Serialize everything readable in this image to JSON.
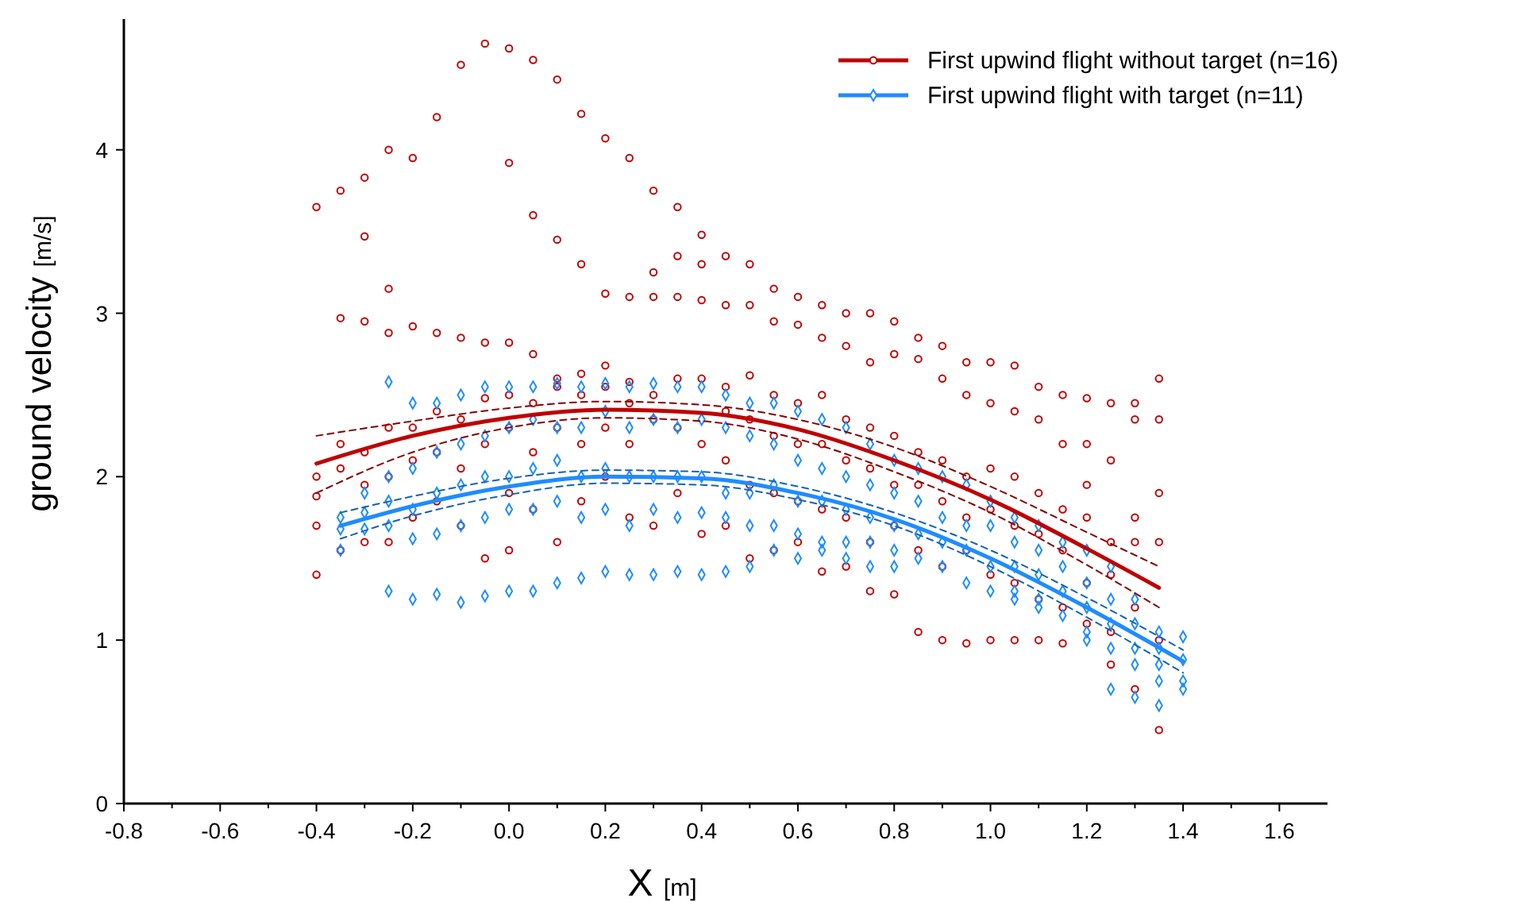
{
  "chart_data": {
    "type": "scatter",
    "xlabel": "X [m]",
    "ylabel": "ground velocity [m/s]",
    "xlim": [
      -0.8,
      1.7
    ],
    "ylim": [
      0,
      4.8
    ],
    "xticks": [
      -0.8,
      {
        "value": -0.7,
        "label": null
      },
      -0.6,
      {
        "value": -0.5,
        "label": null
      },
      -0.4,
      {
        "value": -0.3,
        "label": null
      },
      -0.2,
      {
        "value": -0.1,
        "label": null
      },
      {
        "value": 0,
        "label": "0.0"
      },
      {
        "value": 0.1,
        "label": null
      },
      0.2,
      {
        "value": 0.3,
        "label": null
      },
      0.4,
      {
        "value": 0.5,
        "label": null
      },
      0.6,
      {
        "value": 0.7,
        "label": null
      },
      0.8,
      {
        "value": 0.9,
        "label": null
      },
      {
        "value": 1,
        "label": "1.0"
      },
      {
        "value": 1.1,
        "label": null
      },
      1.2,
      {
        "value": 1.3,
        "label": null
      },
      1.4,
      {
        "value": 1.5,
        "label": null
      },
      1.6
    ],
    "yticks": [
      0,
      1,
      2,
      3,
      4
    ],
    "grid": false,
    "legend": "top right",
    "series": [
      {
        "color": "#c00000",
        "marker": "circle",
        "x": [
          -0.4,
          -0.4,
          -0.4,
          -0.4,
          -0.4,
          -0.35,
          -0.35,
          -0.35,
          -0.35,
          -0.35,
          -0.3,
          -0.3,
          -0.3,
          -0.3,
          -0.3,
          -0.3,
          -0.25,
          -0.25,
          -0.25,
          -0.25,
          -0.25,
          -0.25,
          -0.2,
          -0.2,
          -0.2,
          -0.2,
          -0.2,
          -0.15,
          -0.15,
          -0.15,
          -0.15,
          -0.15,
          -0.1,
          -0.1,
          -0.1,
          -0.1,
          -0.1,
          -0.05,
          -0.05,
          -0.05,
          -0.05,
          -0.05,
          0,
          0,
          0,
          0,
          0,
          0,
          0,
          0.05,
          0.05,
          0.05,
          0.05,
          0.05,
          0.05,
          0.1,
          0.1,
          0.1,
          0.1,
          0.1,
          0.1,
          0.15,
          0.15,
          0.15,
          0.15,
          0.15,
          0.15,
          0.2,
          0.2,
          0.2,
          0.2,
          0.2,
          0.2,
          0.25,
          0.25,
          0.25,
          0.25,
          0.25,
          0.25,
          0.3,
          0.3,
          0.3,
          0.3,
          0.3,
          0.3,
          0.35,
          0.35,
          0.35,
          0.35,
          0.35,
          0.35,
          0.4,
          0.4,
          0.4,
          0.4,
          0.4,
          0.4,
          0.45,
          0.45,
          0.45,
          0.45,
          0.45,
          0.45,
          0.5,
          0.5,
          0.5,
          0.5,
          0.5,
          0.5,
          0.55,
          0.55,
          0.55,
          0.55,
          0.55,
          0.55,
          0.6,
          0.6,
          0.6,
          0.6,
          0.6,
          0.6,
          0.65,
          0.65,
          0.65,
          0.65,
          0.65,
          0.65,
          0.7,
          0.7,
          0.7,
          0.7,
          0.7,
          0.7,
          0.75,
          0.75,
          0.75,
          0.75,
          0.75,
          0.75,
          0.8,
          0.8,
          0.8,
          0.8,
          0.8,
          0.8,
          0.85,
          0.85,
          0.85,
          0.85,
          0.85,
          0.85,
          0.9,
          0.9,
          0.9,
          0.9,
          0.9,
          0.9,
          0.95,
          0.95,
          0.95,
          0.95,
          0.95,
          0.95,
          1,
          1,
          1,
          1,
          1,
          1,
          1.05,
          1.05,
          1.05,
          1.05,
          1.05,
          1.05,
          1.1,
          1.1,
          1.1,
          1.1,
          1.1,
          1.1,
          1.15,
          1.15,
          1.15,
          1.15,
          1.15,
          1.15,
          1.2,
          1.2,
          1.2,
          1.2,
          1.2,
          1.2,
          1.25,
          1.25,
          1.25,
          1.25,
          1.25,
          1.25,
          1.3,
          1.3,
          1.3,
          1.3,
          1.3,
          1.3,
          1.35,
          1.35,
          1.35,
          1.35,
          1.35,
          1.35
        ],
        "values": [
          3.65,
          2.0,
          1.88,
          1.7,
          1.4,
          3.75,
          2.97,
          2.2,
          2.05,
          1.55,
          3.83,
          3.47,
          2.95,
          2.15,
          1.95,
          1.6,
          4.0,
          3.15,
          2.88,
          2.3,
          2.0,
          1.6,
          3.95,
          2.92,
          2.3,
          2.1,
          1.75,
          4.2,
          2.88,
          2.4,
          2.15,
          1.85,
          4.52,
          2.85,
          2.35,
          2.05,
          1.7,
          4.65,
          2.82,
          2.48,
          2.2,
          1.5,
          4.62,
          3.92,
          2.82,
          2.5,
          2.3,
          1.9,
          1.55,
          4.55,
          3.6,
          2.75,
          2.45,
          2.15,
          1.8,
          4.43,
          3.45,
          2.6,
          2.55,
          2.3,
          1.6,
          4.22,
          3.3,
          2.63,
          2.5,
          2.2,
          1.85,
          4.07,
          3.12,
          2.68,
          2.55,
          2.3,
          2.0,
          3.95,
          3.1,
          2.58,
          2.45,
          2.2,
          1.75,
          3.75,
          3.25,
          3.1,
          2.5,
          2.35,
          1.7,
          3.65,
          3.35,
          3.1,
          2.6,
          2.3,
          1.9,
          3.48,
          3.3,
          3.08,
          2.6,
          2.2,
          1.65,
          3.35,
          3.05,
          2.55,
          2.4,
          2.1,
          1.7,
          3.3,
          3.05,
          2.62,
          2.35,
          1.95,
          1.5,
          3.15,
          2.95,
          2.5,
          2.25,
          1.9,
          1.55,
          3.1,
          2.93,
          2.45,
          2.2,
          1.85,
          1.6,
          3.05,
          2.85,
          2.5,
          2.2,
          1.8,
          1.42,
          3.0,
          2.8,
          2.35,
          2.1,
          1.75,
          1.45,
          3.0,
          2.7,
          2.3,
          2.05,
          1.6,
          1.3,
          2.95,
          2.75,
          2.25,
          1.95,
          1.7,
          1.28,
          2.85,
          2.72,
          2.15,
          1.95,
          1.55,
          1.05,
          2.8,
          2.6,
          2.1,
          1.85,
          1.45,
          1.0,
          2.7,
          2.5,
          2.0,
          1.75,
          1.55,
          0.98,
          2.7,
          2.45,
          2.05,
          1.8,
          1.4,
          1.0,
          2.68,
          2.4,
          2.0,
          1.7,
          1.35,
          1.0,
          2.55,
          2.35,
          1.9,
          1.65,
          1.25,
          1.0,
          2.5,
          2.2,
          1.8,
          1.55,
          1.2,
          0.98,
          2.48,
          2.2,
          1.95,
          1.75,
          1.35,
          1.1,
          2.45,
          2.1,
          1.6,
          1.4,
          1.05,
          0.85,
          2.45,
          2.35,
          1.75,
          1.6,
          1.2,
          0.7,
          2.6,
          2.35,
          1.9,
          1.6,
          1.0,
          0.45
        ]
      },
      {
        "color": "#1e8cff",
        "marker": "diamond",
        "x": [
          -0.35,
          -0.35,
          -0.35,
          -0.3,
          -0.3,
          -0.3,
          -0.25,
          -0.25,
          -0.25,
          -0.25,
          -0.25,
          -0.2,
          -0.2,
          -0.2,
          -0.2,
          -0.2,
          -0.15,
          -0.15,
          -0.15,
          -0.15,
          -0.15,
          -0.1,
          -0.1,
          -0.1,
          -0.1,
          -0.1,
          -0.05,
          -0.05,
          -0.05,
          -0.05,
          -0.05,
          0,
          0,
          0,
          0,
          0,
          0.05,
          0.05,
          0.05,
          0.05,
          0.05,
          0.1,
          0.1,
          0.1,
          0.1,
          0.1,
          0.15,
          0.15,
          0.15,
          0.15,
          0.15,
          0.2,
          0.2,
          0.2,
          0.2,
          0.2,
          0.25,
          0.25,
          0.25,
          0.25,
          0.25,
          0.3,
          0.3,
          0.3,
          0.3,
          0.3,
          0.35,
          0.35,
          0.35,
          0.35,
          0.35,
          0.4,
          0.4,
          0.4,
          0.4,
          0.4,
          0.45,
          0.45,
          0.45,
          0.45,
          0.45,
          0.5,
          0.5,
          0.5,
          0.5,
          0.5,
          0.55,
          0.55,
          0.55,
          0.55,
          0.55,
          0.6,
          0.6,
          0.6,
          0.6,
          0.6,
          0.65,
          0.65,
          0.65,
          0.65,
          0.65,
          0.7,
          0.7,
          0.7,
          0.7,
          0.7,
          0.75,
          0.75,
          0.75,
          0.75,
          0.75,
          0.8,
          0.8,
          0.8,
          0.8,
          0.8,
          0.85,
          0.85,
          0.85,
          0.85,
          0.9,
          0.9,
          0.9,
          0.9,
          0.95,
          0.95,
          0.95,
          0.95,
          1,
          1,
          1,
          1,
          1.05,
          1.05,
          1.05,
          1.05,
          1.05,
          1.1,
          1.1,
          1.1,
          1.1,
          1.1,
          1.15,
          1.15,
          1.15,
          1.15,
          1.2,
          1.2,
          1.2,
          1.2,
          1.2,
          1.25,
          1.25,
          1.25,
          1.25,
          1.25,
          1.3,
          1.3,
          1.3,
          1.3,
          1.3,
          1.35,
          1.35,
          1.35,
          1.35,
          1.35,
          1.4,
          1.4,
          1.4,
          1.4
        ],
        "values": [
          1.75,
          1.68,
          1.55,
          1.9,
          1.78,
          1.68,
          2.58,
          2.0,
          1.85,
          1.7,
          1.3,
          2.45,
          2.05,
          1.8,
          1.62,
          1.25,
          2.45,
          2.15,
          1.9,
          1.65,
          1.28,
          2.5,
          2.2,
          1.95,
          1.7,
          1.23,
          2.55,
          2.25,
          2.0,
          1.75,
          1.27,
          2.55,
          2.3,
          2.0,
          1.8,
          1.3,
          2.55,
          2.35,
          2.05,
          1.8,
          1.3,
          2.57,
          2.3,
          2.1,
          1.85,
          1.35,
          2.55,
          2.3,
          2.0,
          1.75,
          1.38,
          2.57,
          2.4,
          2.05,
          1.8,
          1.42,
          2.55,
          2.3,
          2.0,
          1.7,
          1.4,
          2.57,
          2.35,
          2.0,
          1.8,
          1.4,
          2.55,
          2.3,
          2.0,
          1.75,
          1.42,
          2.55,
          2.35,
          2.0,
          1.78,
          1.4,
          2.5,
          2.3,
          1.9,
          1.75,
          1.42,
          2.45,
          2.25,
          1.9,
          1.7,
          1.45,
          2.45,
          2.2,
          1.95,
          1.7,
          1.55,
          2.4,
          2.1,
          1.85,
          1.65,
          1.5,
          2.35,
          2.05,
          1.85,
          1.6,
          1.55,
          2.3,
          2.0,
          1.8,
          1.6,
          1.5,
          2.2,
          1.95,
          1.75,
          1.6,
          1.45,
          2.1,
          1.9,
          1.7,
          1.55,
          1.45,
          2.05,
          1.85,
          1.65,
          1.5,
          2.0,
          1.75,
          1.6,
          1.45,
          1.95,
          1.7,
          1.55,
          1.35,
          1.85,
          1.7,
          1.45,
          1.3,
          1.75,
          1.6,
          1.45,
          1.3,
          1.25,
          1.7,
          1.55,
          1.4,
          1.25,
          1.2,
          1.6,
          1.45,
          1.3,
          1.15,
          1.55,
          1.35,
          1.2,
          1.05,
          1.0,
          1.45,
          1.25,
          1.1,
          0.95,
          0.7,
          1.25,
          1.1,
          0.95,
          0.85,
          0.65,
          1.05,
          0.95,
          0.85,
          0.75,
          0.6,
          1.02,
          0.88,
          0.75,
          0.7
        ]
      },
      {
        "type": "line",
        "name": "First upwind flight without target (n=16)",
        "color": "#c00000",
        "marker": "none",
        "line_style": "solid",
        "x": [
          -0.4,
          -0.2,
          0,
          0.2,
          0.4,
          0.6,
          0.8,
          1.0,
          1.2,
          1.35
        ],
        "values": [
          2.08,
          2.25,
          2.36,
          2.41,
          2.39,
          2.29,
          2.1,
          1.86,
          1.56,
          1.32
        ]
      },
      {
        "type": "line",
        "name": "First upwind flight with target (n=11)",
        "color": "#1e8cff",
        "marker": "none",
        "line_style": "solid",
        "x": [
          -0.35,
          -0.2,
          0,
          0.2,
          0.4,
          0.6,
          0.8,
          1.0,
          1.2,
          1.4
        ],
        "values": [
          1.7,
          1.82,
          1.94,
          2.0,
          1.99,
          1.9,
          1.74,
          1.5,
          1.2,
          0.87
        ]
      },
      {
        "type": "line",
        "color": "#860000",
        "marker": "none",
        "line_style": "dashed",
        "x": [
          -0.4,
          -0.2,
          0,
          0.2,
          0.4,
          0.6,
          0.8,
          1.0,
          1.2,
          1.35
        ],
        "values": [
          1.9,
          2.15,
          2.3,
          2.36,
          2.34,
          2.23,
          2.03,
          1.78,
          1.46,
          1.2
        ]
      },
      {
        "type": "line",
        "color": "#860000",
        "marker": "none",
        "line_style": "dashed",
        "x": [
          -0.4,
          -0.2,
          0,
          0.2,
          0.4,
          0.6,
          0.8,
          1.0,
          1.2,
          1.35
        ],
        "values": [
          2.25,
          2.34,
          2.42,
          2.46,
          2.44,
          2.35,
          2.18,
          1.94,
          1.66,
          1.45
        ]
      },
      {
        "type": "line",
        "color": "#1562b3",
        "marker": "none",
        "line_style": "dashed",
        "x": [
          -0.35,
          -0.2,
          0,
          0.2,
          0.4,
          0.6,
          0.8,
          1.0,
          1.2,
          1.4
        ],
        "values": [
          1.62,
          1.76,
          1.89,
          1.96,
          1.95,
          1.86,
          1.7,
          1.45,
          1.14,
          0.8
        ]
      },
      {
        "type": "line",
        "color": "#1562b3",
        "marker": "none",
        "line_style": "dashed",
        "x": [
          -0.35,
          -0.2,
          0,
          0.2,
          0.4,
          0.6,
          0.8,
          1.0,
          1.2,
          1.4
        ],
        "values": [
          1.78,
          1.88,
          1.99,
          2.04,
          2.03,
          1.94,
          1.78,
          1.55,
          1.26,
          0.94
        ]
      }
    ]
  }
}
